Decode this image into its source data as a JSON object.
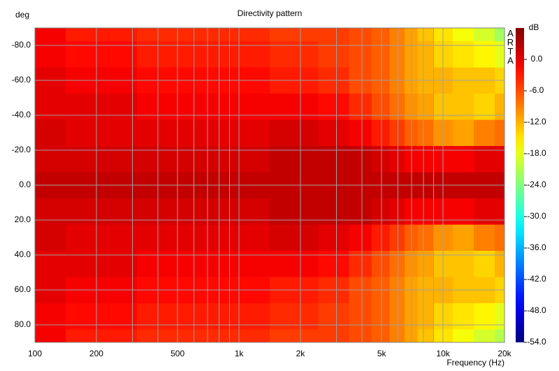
{
  "chart_data": {
    "type": "heatmap",
    "title": "Directivity pattern",
    "y_label": "deg",
    "x_label": "Frequency (Hz)",
    "colorbar_label": "dB",
    "logo": "ARTA",
    "x": [
      100,
      200,
      500,
      1000,
      2000,
      3000,
      4000,
      5000,
      6000,
      7000,
      8000,
      10000,
      12500,
      16000,
      20000
    ],
    "y": [
      -90,
      -75,
      -60,
      -45,
      -30,
      -15,
      0,
      15,
      30,
      45,
      60,
      75,
      90
    ],
    "z": [
      [
        -1,
        -3,
        -4,
        -4,
        -5,
        -5,
        -6,
        -7,
        -9,
        -11,
        -13,
        -15,
        -17,
        -19,
        -22
      ],
      [
        -1,
        -2,
        -3,
        -3,
        -4,
        -5,
        -6,
        -7,
        -9,
        -11,
        -12,
        -14,
        -15,
        -16,
        -18
      ],
      [
        0,
        -1,
        -2,
        -2,
        -3,
        -4,
        -6,
        -7,
        -9,
        -11,
        -12,
        -12,
        -13,
        -13,
        -14
      ],
      [
        0,
        0,
        -1,
        -1,
        -1,
        -2,
        -4,
        -6,
        -8,
        -10,
        -11,
        -13,
        -13,
        -14,
        -12
      ],
      [
        1,
        0,
        0,
        0,
        1,
        0,
        -1,
        -3,
        -5,
        -7,
        -8,
        -10,
        -11,
        -9,
        -8
      ],
      [
        1,
        1,
        1,
        1,
        2,
        2,
        2,
        1,
        0,
        -1,
        -1,
        -1,
        -1,
        0,
        0
      ],
      [
        2,
        2,
        2,
        2,
        2,
        2,
        2,
        2,
        2,
        2,
        2,
        2,
        2,
        2,
        2
      ],
      [
        1,
        1,
        1,
        1,
        2,
        2,
        2,
        1,
        0,
        -1,
        -1,
        -1,
        -1,
        0,
        0
      ],
      [
        1,
        0,
        0,
        0,
        1,
        0,
        -1,
        -3,
        -5,
        -7,
        -8,
        -10,
        -11,
        -9,
        -8
      ],
      [
        0,
        0,
        -1,
        -1,
        -1,
        -2,
        -4,
        -6,
        -8,
        -10,
        -11,
        -13,
        -13,
        -14,
        -12
      ],
      [
        0,
        -1,
        -2,
        -2,
        -3,
        -4,
        -6,
        -7,
        -9,
        -11,
        -12,
        -12,
        -13,
        -13,
        -14
      ],
      [
        -1,
        -2,
        -3,
        -3,
        -4,
        -5,
        -6,
        -7,
        -9,
        -11,
        -12,
        -14,
        -15,
        -16,
        -18
      ],
      [
        -1,
        -3,
        -4,
        -4,
        -5,
        -5,
        -6,
        -7,
        -9,
        -11,
        -13,
        -15,
        -17,
        -19,
        -21
      ]
    ],
    "xscale": "log",
    "xlim": [
      100,
      20000
    ],
    "xticks": [
      100,
      200,
      500,
      {
        "value": 1000,
        "label": "1k"
      },
      {
        "value": 2000,
        "label": "2k"
      },
      {
        "value": 5000,
        "label": "5k"
      },
      {
        "value": 10000,
        "label": "10k"
      },
      {
        "value": 20000,
        "label": "20k"
      }
    ],
    "xminorticks": [
      300,
      400,
      600,
      700,
      800,
      900,
      3000,
      4000,
      6000,
      7000,
      8000,
      9000
    ],
    "ylim": [
      -90,
      90
    ],
    "yticks": [
      {
        "value": -80,
        "label": "-80.0"
      },
      {
        "value": -60,
        "label": "-60.0"
      },
      {
        "value": -40,
        "label": "-40.0"
      },
      {
        "value": -20,
        "label": "-20.0"
      },
      {
        "value": 0,
        "label": "0.0"
      },
      {
        "value": 20,
        "label": "20.0"
      },
      {
        "value": 40,
        "label": "40.0"
      },
      {
        "value": 60,
        "label": "60.0"
      },
      {
        "value": 80,
        "label": "80.0"
      }
    ],
    "clim": [
      -54,
      6
    ],
    "cticks": [
      {
        "value": 0,
        "label": "0.0"
      },
      {
        "value": -6,
        "label": "-6.0"
      },
      {
        "value": -12,
        "label": "-12.0"
      },
      {
        "value": -18,
        "label": "-18.0"
      },
      {
        "value": -24,
        "label": "-24.0"
      },
      {
        "value": -30,
        "label": "-30.0"
      },
      {
        "value": -36,
        "label": "-36.0"
      },
      {
        "value": -42,
        "label": "-42.0"
      },
      {
        "value": -48,
        "label": "-48.0"
      },
      {
        "value": -54,
        "label": "-54.0"
      }
    ],
    "colormap": "jet",
    "grid": true
  }
}
